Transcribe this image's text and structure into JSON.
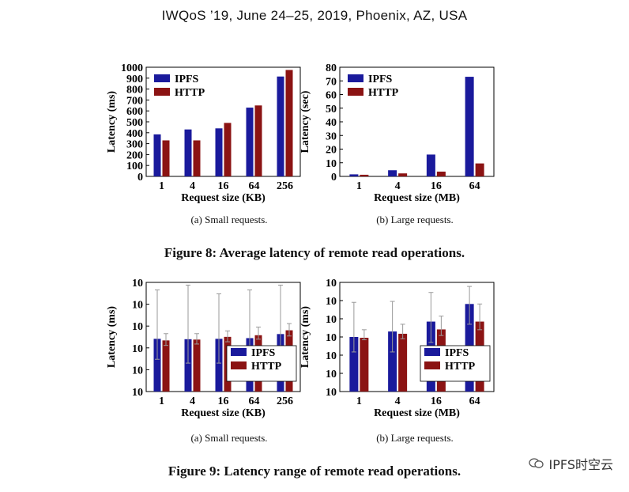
{
  "header": "IWQoS ’19, June 24–25, 2019, Phoenix, AZ, USA",
  "colors": {
    "IPFS": "#1a1a9c",
    "HTTP": "#8b1313"
  },
  "captions": {
    "small": "(a)  Small requests.",
    "large": "(b)  Large requests.",
    "fig8": "Figure 8: Average latency of remote read operations.",
    "fig9": "Figure 9: Latency range of remote read operations."
  },
  "watermark": {
    "text": "IPFS时空云",
    "icon": "wechat-icon"
  },
  "chart_data": [
    {
      "id": "fig8a",
      "type": "bar",
      "scale": "linear",
      "categories": [
        "1",
        "4",
        "16",
        "64",
        "256"
      ],
      "series": [
        {
          "name": "IPFS",
          "values": [
            385,
            430,
            440,
            630,
            915
          ]
        },
        {
          "name": "HTTP",
          "values": [
            330,
            330,
            490,
            650,
            975
          ]
        }
      ],
      "xlabel": "Request size (KB)",
      "ylabel": "Latency (ms)",
      "ylim": [
        0,
        1000
      ],
      "yticks": [
        "0",
        "100",
        "200",
        "300",
        "400",
        "500",
        "600",
        "700",
        "800",
        "900",
        "1000"
      ],
      "legend": "top-left"
    },
    {
      "id": "fig8b",
      "type": "bar",
      "scale": "linear",
      "categories": [
        "1",
        "4",
        "16",
        "64"
      ],
      "series": [
        {
          "name": "IPFS",
          "values": [
            1.5,
            4.5,
            16,
            73
          ]
        },
        {
          "name": "HTTP",
          "values": [
            1.2,
            2.2,
            3.5,
            9.5
          ]
        }
      ],
      "xlabel": "Request size (MB)",
      "ylabel": "Latency (sec)",
      "ylim": [
        0,
        80
      ],
      "yticks": [
        "0",
        "10",
        "20",
        "30",
        "40",
        "50",
        "60",
        "70",
        "80"
      ],
      "legend": "top-left"
    },
    {
      "id": "fig9a",
      "type": "bar",
      "scale": "log",
      "categories": [
        "1",
        "4",
        "16",
        "64",
        "256"
      ],
      "series": [
        {
          "name": "IPFS",
          "values": [
            260,
            250,
            260,
            280,
            430
          ],
          "err_low": [
            30,
            20,
            20,
            20,
            30
          ],
          "err_high": [
            45000,
            75000,
            30000,
            45000,
            75000
          ]
        },
        {
          "name": "HTTP",
          "values": [
            220,
            240,
            320,
            380,
            640
          ],
          "err_low": [
            130,
            150,
            190,
            250,
            350
          ],
          "err_high": [
            450,
            450,
            600,
            900,
            1300
          ]
        }
      ],
      "xlabel": "Request size (KB)",
      "ylabel": "Latency (ms)",
      "ylim": [
        1,
        100000
      ],
      "yticks": [
        "10",
        "10",
        "10",
        "10",
        "10",
        "10"
      ],
      "yexp": [
        "0",
        "1",
        "2",
        "3",
        "4",
        "5"
      ],
      "legend": "bottom-right"
    },
    {
      "id": "fig9b",
      "type": "bar",
      "scale": "log",
      "categories": [
        "1",
        "4",
        "16",
        "64"
      ],
      "series": [
        {
          "name": "IPFS",
          "values": [
            1000,
            2000,
            7000,
            65000
          ],
          "err_low": [
            150,
            150,
            500,
            5000
          ],
          "err_high": [
            80000,
            90000,
            280000,
            600000
          ]
        },
        {
          "name": "HTTP",
          "values": [
            900,
            1500,
            2600,
            7000
          ],
          "err_low": [
            700,
            800,
            1200,
            2500
          ],
          "err_high": [
            2500,
            5000,
            14000,
            65000
          ]
        }
      ],
      "xlabel": "Request size (MB)",
      "ylabel": "Latency (ms)",
      "ylim": [
        1,
        1000000
      ],
      "yticks": [
        "10",
        "10",
        "10",
        "10",
        "10",
        "10",
        "10"
      ],
      "yexp": [
        "0",
        "1",
        "2",
        "3",
        "4",
        "5",
        "6"
      ],
      "legend": "bottom-right"
    }
  ]
}
